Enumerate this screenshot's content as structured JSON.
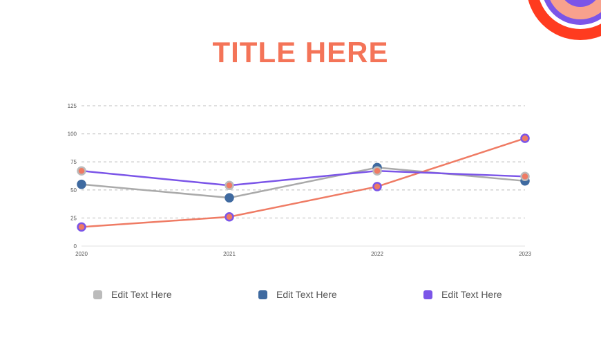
{
  "slide": {
    "title": "TITLE HERE"
  },
  "colors": {
    "title": "#f47458",
    "grid": "#cccccc",
    "axis": "#e0e0e0",
    "tick_text": "#555555"
  },
  "chart_data": {
    "type": "line",
    "x": [
      "2020",
      "2021",
      "2022",
      "2023"
    ],
    "ylim": [
      0,
      125
    ],
    "yticks": [
      0,
      25,
      50,
      75,
      100,
      125
    ],
    "grid": true,
    "legend_position": "bottom",
    "series": [
      {
        "name": "Edit Text Here",
        "values": [
          55,
          43,
          70,
          58
        ],
        "line_color": "#aaaaaa",
        "legend_color": "#bbbbbb",
        "marker_fill": "#3f6aa0",
        "marker_stroke": "#3f6aa0"
      },
      {
        "name": "Edit Text Here",
        "values": [
          17,
          26,
          53,
          96
        ],
        "line_color": "#ef7b64",
        "legend_color": "#3f6aa0",
        "marker_fill": "#ef7b64",
        "marker_stroke": "#7b55e8"
      },
      {
        "name": "Edit Text Here",
        "values": [
          67,
          54,
          67,
          62
        ],
        "line_color": "#7b55e8",
        "legend_color": "#7b55e8",
        "marker_fill": "#ef7b64",
        "marker_stroke": "#bbbbbb"
      }
    ]
  }
}
